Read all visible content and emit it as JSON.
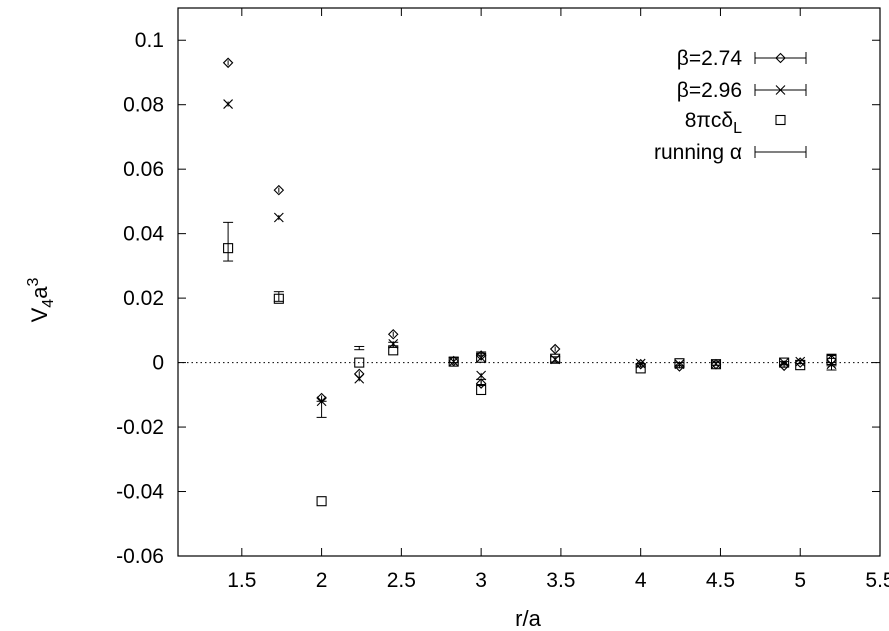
{
  "chart_data": {
    "type": "scatter",
    "xlabel": "r/a",
    "ylabel_base": "V",
    "ylabel_sub": "4",
    "ylabel_mid": "a",
    "ylabel_sup": "3",
    "xlim": [
      1.1,
      5.5
    ],
    "ylim": [
      -0.06,
      0.11
    ],
    "x_ticks": [
      1.5,
      2,
      2.5,
      3,
      3.5,
      4,
      4.5,
      5,
      5.5
    ],
    "x_tick_labels": [
      "1.5",
      "2",
      "2.5",
      "3",
      "3.5",
      "4",
      "4.5",
      "5",
      "5.5"
    ],
    "y_ticks": [
      -0.06,
      -0.04,
      -0.02,
      0,
      0.02,
      0.04,
      0.06,
      0.08,
      0.1
    ],
    "y_tick_labels": [
      "-0.06",
      "-0.04",
      "-0.02",
      "0",
      "0.02",
      "0.04",
      "0.06",
      "0.08",
      "0.1"
    ],
    "zero_line": true,
    "legend_position": "top-right",
    "series": [
      {
        "name": "β=2.74",
        "marker": "diamond",
        "points": [
          {
            "x": 1.414,
            "y": 0.093,
            "err": 0.0008
          },
          {
            "x": 1.732,
            "y": 0.0535,
            "err": 0.0008
          },
          {
            "x": 2.0,
            "y": -0.011,
            "err": 0.0008
          },
          {
            "x": 2.236,
            "y": -0.0035,
            "err": 0.0008
          },
          {
            "x": 2.449,
            "y": 0.0088,
            "err": 0.0008
          },
          {
            "x": 2.828,
            "y": 0.0005,
            "err": 0.0008
          },
          {
            "x": 3.0,
            "y": 0.0022,
            "err": 0.0008
          },
          {
            "x": 3.0,
            "y": -0.0065,
            "err": 0.0008
          },
          {
            "x": 3.464,
            "y": 0.0042,
            "err": 0.0008
          },
          {
            "x": 4.0,
            "y": -0.0005,
            "err": 0.0006
          },
          {
            "x": 4.243,
            "y": -0.0012,
            "err": 0.0006
          },
          {
            "x": 4.472,
            "y": -0.0005,
            "err": 0.0006
          },
          {
            "x": 4.899,
            "y": -0.001,
            "err": 0.0006
          },
          {
            "x": 5.0,
            "y": 0.0,
            "err": 0.0006
          },
          {
            "x": 5.196,
            "y": 0.0008,
            "err": 0.0018
          }
        ]
      },
      {
        "name": "β=2.96",
        "marker": "cross",
        "points": [
          {
            "x": 1.414,
            "y": 0.0802,
            "err": 0.0008
          },
          {
            "x": 1.732,
            "y": 0.045,
            "err": 0.0008
          },
          {
            "x": 2.0,
            "y": -0.012,
            "err": 0.0008
          },
          {
            "x": 2.236,
            "y": -0.005,
            "err": 0.0008
          },
          {
            "x": 2.449,
            "y": 0.0058,
            "err": 0.0008
          },
          {
            "x": 2.828,
            "y": 0.0003,
            "err": 0.0008
          },
          {
            "x": 3.0,
            "y": 0.0015,
            "err": 0.0008
          },
          {
            "x": 3.0,
            "y": -0.004,
            "err": 0.0008
          },
          {
            "x": 3.464,
            "y": 0.001,
            "err": 0.0008
          },
          {
            "x": 4.0,
            "y": -0.0003,
            "err": 0.0006
          },
          {
            "x": 4.243,
            "y": -0.0005,
            "err": 0.0006
          },
          {
            "x": 4.472,
            "y": -0.0004,
            "err": 0.0006
          },
          {
            "x": 4.899,
            "y": 0.0,
            "err": 0.0006
          },
          {
            "x": 5.0,
            "y": 0.0003,
            "err": 0.0006
          },
          {
            "x": 5.196,
            "y": -0.0005,
            "err": 0.0018
          }
        ]
      },
      {
        "name": "8πcδ",
        "name_sub": "L",
        "marker": "square",
        "points": [
          {
            "x": 1.414,
            "y": 0.0355
          },
          {
            "x": 1.732,
            "y": 0.0198
          },
          {
            "x": 2.0,
            "y": -0.043
          },
          {
            "x": 2.236,
            "y": 0.0
          },
          {
            "x": 2.449,
            "y": 0.0038
          },
          {
            "x": 2.828,
            "y": 0.0003
          },
          {
            "x": 3.0,
            "y": 0.0015
          },
          {
            "x": 3.0,
            "y": -0.0085
          },
          {
            "x": 3.464,
            "y": 0.0012
          },
          {
            "x": 4.0,
            "y": -0.0018
          },
          {
            "x": 4.243,
            "y": -0.0002
          },
          {
            "x": 4.472,
            "y": -0.0005
          },
          {
            "x": 4.899,
            "y": 0.0
          },
          {
            "x": 5.0,
            "y": -0.0008
          },
          {
            "x": 5.196,
            "y": 0.0008
          }
        ]
      },
      {
        "name": "running α",
        "marker": "errorbar",
        "points": [
          {
            "x": 1.414,
            "y": 0.0375,
            "err": 0.006
          },
          {
            "x": 1.732,
            "y": 0.0205,
            "err": 0.0015
          },
          {
            "x": 2.0,
            "y": -0.0145,
            "err": 0.0025
          },
          {
            "x": 2.236,
            "y": 0.0045,
            "err": 0.0005
          },
          {
            "x": 2.449,
            "y": 0.0055,
            "err": 0.0008
          },
          {
            "x": 2.828,
            "y": 0.0008,
            "err": 0.0008
          },
          {
            "x": 3.0,
            "y": 0.0028,
            "err": 0.0005
          },
          {
            "x": 3.0,
            "y": -0.006,
            "err": 0.0008
          },
          {
            "x": 3.464,
            "y": 0.001,
            "err": 0.0008
          },
          {
            "x": 4.0,
            "y": -0.0008,
            "err": 0.0005
          },
          {
            "x": 4.243,
            "y": -0.0005,
            "err": 0.0005
          },
          {
            "x": 4.472,
            "y": -0.0003,
            "err": 0.0005
          },
          {
            "x": 4.899,
            "y": -0.0002,
            "err": 0.0005
          },
          {
            "x": 5.0,
            "y": 0.0002,
            "err": 0.0005
          },
          {
            "x": 5.196,
            "y": 0.0012,
            "err": 0.0012
          }
        ]
      }
    ]
  }
}
